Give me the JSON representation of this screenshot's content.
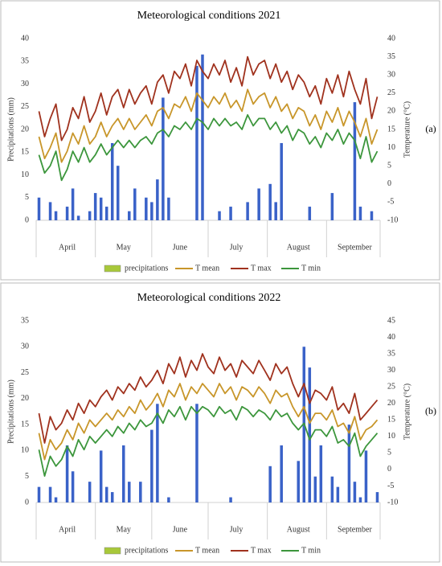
{
  "chart_data": [
    {
      "type": "combo",
      "title": "Meteorological conditions 2021",
      "y_label": "Precipitations (mm)",
      "y2_label": "Temperature (°C)",
      "panel_label": "(a)",
      "categories": [
        null,
        null,
        null,
        null,
        null,
        "April",
        null,
        null,
        null,
        null,
        null,
        null,
        null,
        null,
        null,
        "May",
        null,
        null,
        null,
        null,
        null,
        null,
        null,
        null,
        null,
        "June",
        null,
        null,
        null,
        null,
        null,
        null,
        null,
        null,
        null,
        "July",
        null,
        null,
        null,
        null,
        null,
        null,
        null,
        null,
        null,
        null,
        "August",
        null,
        null,
        null,
        null,
        null,
        null,
        null,
        null,
        null,
        "September",
        null,
        null,
        null,
        null
      ],
      "ylim": [
        0,
        40
      ],
      "yticks": [
        0,
        5,
        10,
        15,
        20,
        25,
        30,
        35,
        40
      ],
      "y2lim": [
        -10,
        40
      ],
      "y2ticks": [
        -10,
        -5,
        0,
        5,
        10,
        15,
        20,
        25,
        30,
        35,
        40
      ],
      "series": [
        {
          "name": "precipitations",
          "type": "bar",
          "color": "#3a62c8",
          "legend_color": "#a8c83a",
          "values": [
            5,
            0,
            4,
            2,
            0,
            3,
            7,
            1,
            0,
            2,
            6,
            5,
            3,
            17,
            12,
            0,
            2,
            7,
            0,
            5,
            4,
            9,
            27,
            5,
            0,
            0,
            0,
            0,
            34,
            36.5,
            0,
            0,
            2,
            0,
            3,
            0,
            0,
            4,
            0,
            7,
            0,
            8,
            4,
            17,
            0,
            0,
            0,
            0,
            3,
            0,
            0,
            0,
            6,
            0,
            0,
            0,
            26,
            3,
            0,
            2,
            0
          ]
        },
        {
          "name": "T mean",
          "type": "line",
          "axis": "y2",
          "color": "#c8962a",
          "values": [
            13,
            7,
            10,
            14,
            6,
            9,
            14,
            11,
            16,
            11,
            13,
            17,
            13,
            16,
            18,
            15,
            18,
            15,
            17,
            19,
            16,
            20,
            21,
            18,
            22,
            21,
            24,
            20,
            25,
            23,
            21,
            24,
            22,
            25,
            21,
            23,
            20,
            26,
            22,
            24,
            25,
            21,
            24,
            20,
            22,
            18,
            21,
            20,
            16,
            19,
            15,
            20,
            17,
            21,
            16,
            20,
            17,
            13,
            18,
            11,
            15
          ]
        },
        {
          "name": "T max",
          "type": "line",
          "axis": "y2",
          "color": "#a0321e",
          "values": [
            20,
            13,
            18,
            22,
            12,
            15,
            21,
            18,
            24,
            17,
            20,
            25,
            19,
            24,
            26,
            21,
            26,
            22,
            25,
            27,
            22,
            28,
            30,
            25,
            31,
            29,
            33,
            27,
            34,
            31,
            29,
            33,
            30,
            34,
            28,
            32,
            27,
            35,
            30,
            33,
            34,
            29,
            33,
            28,
            31,
            26,
            30,
            28,
            24,
            27,
            22,
            29,
            25,
            30,
            24,
            31,
            26,
            22,
            29,
            18,
            24
          ]
        },
        {
          "name": "T min",
          "type": "line",
          "axis": "y2",
          "color": "#3c963c",
          "values": [
            8,
            3,
            5,
            9,
            1,
            4,
            9,
            6,
            10,
            6,
            8,
            11,
            8,
            10,
            12,
            10,
            12,
            10,
            12,
            13,
            11,
            14,
            15,
            13,
            16,
            15,
            17,
            15,
            18,
            17,
            15,
            18,
            16,
            18,
            16,
            17,
            15,
            19,
            16,
            18,
            18,
            15,
            17,
            14,
            16,
            12,
            15,
            14,
            11,
            13,
            10,
            14,
            12,
            15,
            11,
            14,
            12,
            7,
            13,
            6,
            9
          ]
        }
      ]
    },
    {
      "type": "combo",
      "title": "Meteorological conditions 2022",
      "y_label": "Precipitations (mm)",
      "y2_label": "Temperature (°C)",
      "panel_label": "(b)",
      "categories": [
        null,
        null,
        null,
        null,
        null,
        "April",
        null,
        null,
        null,
        null,
        null,
        null,
        null,
        null,
        null,
        "May",
        null,
        null,
        null,
        null,
        null,
        null,
        null,
        null,
        null,
        "June",
        null,
        null,
        null,
        null,
        null,
        null,
        null,
        null,
        null,
        "July",
        null,
        null,
        null,
        null,
        null,
        null,
        null,
        null,
        null,
        null,
        "August",
        null,
        null,
        null,
        null,
        null,
        null,
        null,
        null,
        null,
        "September",
        null,
        null,
        null,
        null
      ],
      "ylim": [
        0,
        35
      ],
      "yticks": [
        0,
        5,
        10,
        15,
        20,
        25,
        30,
        35
      ],
      "y2lim": [
        -10,
        45
      ],
      "y2ticks": [
        -10,
        -5,
        0,
        5,
        10,
        15,
        20,
        25,
        30,
        35,
        40,
        45
      ],
      "series": [
        {
          "name": "precipitations",
          "type": "bar",
          "color": "#3a62c8",
          "legend_color": "#a8c83a",
          "values": [
            3,
            0,
            3,
            1,
            0,
            11,
            6,
            0,
            0,
            4,
            0,
            10,
            3,
            2,
            0,
            11,
            4,
            0,
            4,
            0,
            14,
            19,
            0,
            1,
            0,
            0,
            0,
            0,
            19,
            0,
            0,
            0,
            0,
            0,
            1,
            0,
            0,
            0,
            0,
            0,
            0,
            7,
            0,
            11,
            0,
            0,
            8,
            30,
            26,
            5,
            11,
            0,
            5,
            3,
            0,
            15,
            4,
            1,
            10,
            0,
            2
          ]
        },
        {
          "name": "T mean",
          "type": "line",
          "axis": "y2",
          "color": "#c8962a",
          "values": [
            11,
            3,
            9,
            6,
            8,
            12,
            9,
            14,
            11,
            15,
            13,
            15,
            17,
            15,
            18,
            16,
            19,
            17,
            21,
            18,
            20,
            23,
            19,
            24,
            22,
            26,
            21,
            25,
            23,
            26,
            24,
            22,
            26,
            23,
            25,
            21,
            25,
            24,
            22,
            25,
            23,
            20,
            24,
            22,
            23,
            19,
            16,
            19,
            14,
            17,
            17,
            15,
            18,
            13,
            14,
            11,
            16,
            9,
            12,
            13,
            15
          ]
        },
        {
          "name": "T max",
          "type": "line",
          "axis": "y2",
          "color": "#a0321e",
          "values": [
            17,
            8,
            16,
            12,
            14,
            18,
            15,
            20,
            17,
            21,
            19,
            22,
            24,
            21,
            25,
            23,
            26,
            24,
            28,
            25,
            27,
            30,
            26,
            32,
            29,
            34,
            28,
            33,
            30,
            35,
            31,
            29,
            34,
            30,
            32,
            28,
            33,
            31,
            29,
            33,
            30,
            27,
            32,
            29,
            31,
            26,
            22,
            26,
            20,
            24,
            23,
            21,
            25,
            18,
            20,
            17,
            23,
            15,
            17,
            19,
            21
          ]
        },
        {
          "name": "T min",
          "type": "line",
          "axis": "y2",
          "color": "#3c963c",
          "values": [
            6,
            -2,
            4,
            1,
            3,
            7,
            4,
            9,
            6,
            10,
            8,
            10,
            12,
            10,
            13,
            11,
            14,
            12,
            15,
            13,
            14,
            17,
            14,
            18,
            16,
            19,
            15,
            19,
            17,
            19,
            18,
            16,
            19,
            17,
            18,
            15,
            19,
            18,
            16,
            18,
            17,
            15,
            18,
            16,
            17,
            14,
            12,
            14,
            9,
            12,
            12,
            10,
            13,
            8,
            9,
            7,
            11,
            4,
            7,
            9,
            11
          ]
        }
      ]
    }
  ]
}
